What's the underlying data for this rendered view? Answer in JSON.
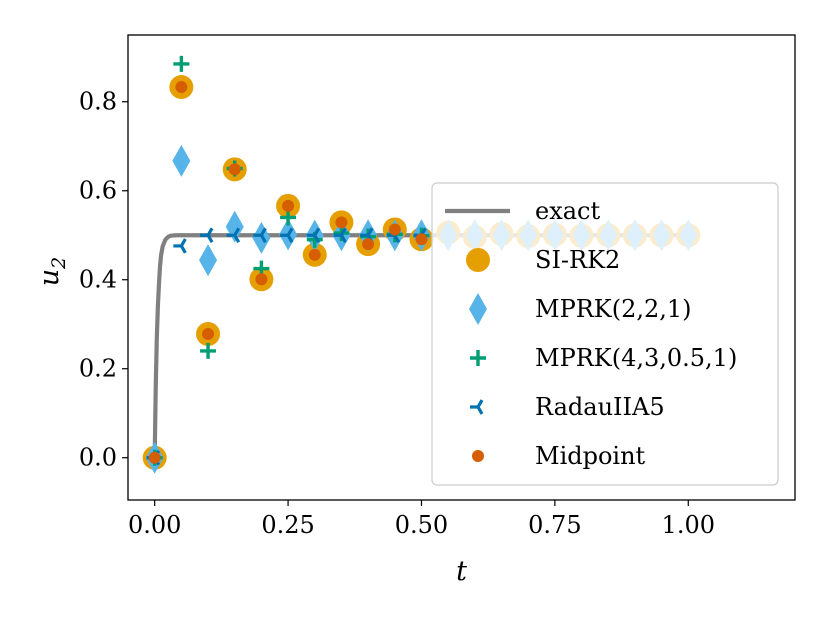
{
  "chart_data": {
    "type": "scatter",
    "title": "",
    "xlabel": "t",
    "ylabel": "u_2",
    "ylabel_main": "u",
    "ylabel_sub": "2",
    "xlim": [
      -0.05,
      1.2
    ],
    "ylim": [
      -0.095,
      0.95
    ],
    "grid": false,
    "legend_position": "center-right",
    "xticks": [
      0.0,
      0.25,
      0.5,
      0.75,
      1.0
    ],
    "xtick_labels": [
      "0.00",
      "0.25",
      "0.50",
      "0.75",
      "1.00"
    ],
    "yticks": [
      0.0,
      0.2,
      0.4,
      0.6,
      0.8
    ],
    "ytick_labels": [
      "0.0",
      "0.2",
      "0.4",
      "0.6",
      "0.8"
    ],
    "series": [
      {
        "name": "exact",
        "marker": "line",
        "color": "#808080",
        "x": [
          0.0,
          0.002,
          0.004,
          0.006,
          0.008,
          0.01,
          0.012,
          0.015,
          0.02,
          0.025,
          0.03,
          0.04,
          0.05,
          0.1,
          0.2,
          0.4,
          0.6,
          0.8,
          1.0
        ],
        "y": [
          0.0,
          0.16,
          0.27,
          0.34,
          0.39,
          0.43,
          0.455,
          0.475,
          0.49,
          0.496,
          0.499,
          0.5,
          0.5,
          0.5,
          0.5,
          0.5,
          0.5,
          0.5,
          0.5
        ]
      },
      {
        "name": "SI-RK2",
        "marker": "circle",
        "color": "#E69F00",
        "x": [
          0.0,
          0.05,
          0.1,
          0.15,
          0.2,
          0.25,
          0.3,
          0.35,
          0.4,
          0.45,
          0.5,
          0.55,
          0.6,
          0.65,
          0.7,
          0.75,
          0.8,
          0.85,
          0.9,
          0.95,
          1.0
        ],
        "y": [
          0.0,
          0.833,
          0.278,
          0.648,
          0.401,
          0.566,
          0.456,
          0.529,
          0.48,
          0.513,
          0.491,
          0.506,
          0.496,
          0.503,
          0.498,
          0.501,
          0.499,
          0.5,
          0.5,
          0.5,
          0.5
        ]
      },
      {
        "name": "MPRK(2,2,1)",
        "marker": "diamond",
        "color": "#56B4E9",
        "x": [
          0.0,
          0.05,
          0.1,
          0.15,
          0.2,
          0.25,
          0.3,
          0.35,
          0.4,
          0.45,
          0.5,
          0.55,
          0.6,
          0.65,
          0.7,
          0.75,
          0.8,
          0.85,
          0.9,
          0.95,
          1.0
        ],
        "y": [
          0.0,
          0.667,
          0.444,
          0.519,
          0.494,
          0.502,
          0.499,
          0.5,
          0.5,
          0.5,
          0.5,
          0.5,
          0.5,
          0.5,
          0.5,
          0.5,
          0.5,
          0.5,
          0.5,
          0.5,
          0.5
        ]
      },
      {
        "name": "MPRK(4,3,0.5,1)",
        "marker": "plus",
        "color": "#009E73",
        "x": [
          0.0,
          0.05,
          0.1,
          0.15,
          0.2,
          0.25,
          0.3,
          0.35,
          0.4,
          0.45,
          0.5
        ],
        "y": [
          0.0,
          0.885,
          0.24,
          0.65,
          0.425,
          0.54,
          0.49,
          0.505,
          0.497,
          0.502,
          0.499
        ]
      },
      {
        "name": "RadauIIA5",
        "marker": "tri_left",
        "color": "#0072B2",
        "x": [
          0.0,
          0.05,
          0.1,
          0.15,
          0.2,
          0.25,
          0.3,
          0.35,
          0.4,
          0.45,
          0.5
        ],
        "y": [
          0.0,
          0.476,
          0.5,
          0.5,
          0.5,
          0.5,
          0.5,
          0.5,
          0.5,
          0.5,
          0.5
        ]
      },
      {
        "name": "Midpoint",
        "marker": "small_circle",
        "color": "#D55E00",
        "x": [
          0.0,
          0.05,
          0.1,
          0.15,
          0.2,
          0.25,
          0.3,
          0.35,
          0.4,
          0.45,
          0.5
        ],
        "y": [
          0.0,
          0.833,
          0.278,
          0.648,
          0.401,
          0.566,
          0.456,
          0.529,
          0.48,
          0.513,
          0.491
        ]
      }
    ]
  }
}
